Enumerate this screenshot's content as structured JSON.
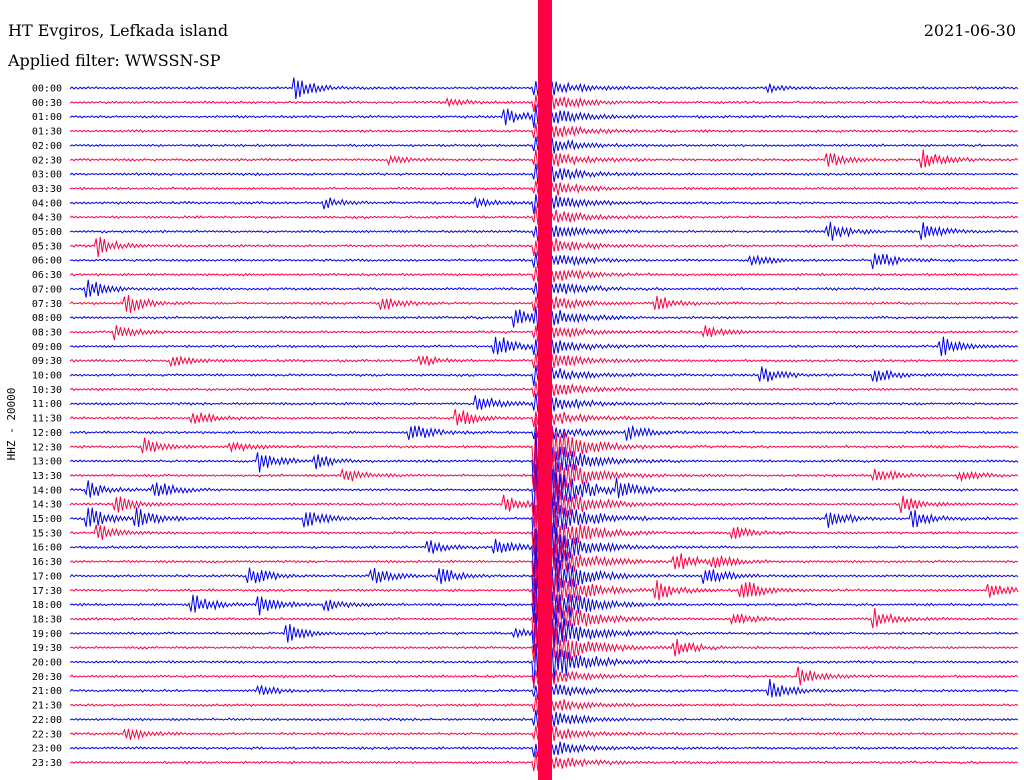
{
  "header": {
    "station": "HT Evgiros, Lefkada island",
    "date": "2021-06-30",
    "filter": "Applied filter: WWSSN-SP"
  },
  "colors": {
    "even": "#0000ee",
    "odd": "#ff0044",
    "text": "#000000"
  },
  "chart_data": {
    "type": "line",
    "title": "HT Evgiros, Lefkada island",
    "ylabel": "HHZ - 20000",
    "row_labels": [
      "00:00",
      "00:30",
      "01:00",
      "01:30",
      "02:00",
      "02:30",
      "03:00",
      "03:30",
      "04:00",
      "04:30",
      "05:00",
      "05:30",
      "06:00",
      "06:30",
      "07:00",
      "07:30",
      "08:00",
      "08:30",
      "09:00",
      "09:30",
      "10:00",
      "10:30",
      "11:00",
      "11:30",
      "12:00",
      "12:30",
      "13:00",
      "13:30",
      "14:00",
      "14:30",
      "15:00",
      "15:30",
      "16:00",
      "16:30",
      "17:00",
      "17:30",
      "18:00",
      "18:30",
      "19:00",
      "19:30",
      "20:00",
      "20:30",
      "21:00",
      "21:30",
      "22:00",
      "22:30",
      "23:00",
      "23:30"
    ],
    "row_color_pattern": [
      "even",
      "odd"
    ],
    "trace_samples": 470,
    "big_event": {
      "time_fraction": 0.5,
      "affected_rows_from": 0,
      "affected_rows_to": 47,
      "peak_rows_from": 25,
      "peak_rows_to": 40
    },
    "events": [
      {
        "row": 0,
        "x": 0.24,
        "amp": 1.1
      },
      {
        "row": 0,
        "x": 0.74,
        "amp": 0.4
      },
      {
        "row": 1,
        "x": 0.4,
        "amp": 0.5
      },
      {
        "row": 2,
        "x": 0.46,
        "amp": 1.0
      },
      {
        "row": 5,
        "x": 0.34,
        "amp": 0.4
      },
      {
        "row": 5,
        "x": 0.8,
        "amp": 0.9
      },
      {
        "row": 5,
        "x": 0.9,
        "amp": 1.2
      },
      {
        "row": 8,
        "x": 0.27,
        "amp": 0.6
      },
      {
        "row": 8,
        "x": 0.43,
        "amp": 0.5
      },
      {
        "row": 10,
        "x": 0.8,
        "amp": 1.2
      },
      {
        "row": 10,
        "x": 0.9,
        "amp": 1.0
      },
      {
        "row": 11,
        "x": 0.03,
        "amp": 1.2
      },
      {
        "row": 12,
        "x": 0.85,
        "amp": 1.1
      },
      {
        "row": 12,
        "x": 0.72,
        "amp": 0.6
      },
      {
        "row": 14,
        "x": 0.02,
        "amp": 1.3
      },
      {
        "row": 15,
        "x": 0.06,
        "amp": 1.2
      },
      {
        "row": 15,
        "x": 0.33,
        "amp": 0.8
      },
      {
        "row": 15,
        "x": 0.62,
        "amp": 0.8
      },
      {
        "row": 16,
        "x": 0.47,
        "amp": 1.2
      },
      {
        "row": 17,
        "x": 0.05,
        "amp": 0.9
      },
      {
        "row": 17,
        "x": 0.67,
        "amp": 0.7
      },
      {
        "row": 18,
        "x": 0.45,
        "amp": 1.3
      },
      {
        "row": 18,
        "x": 0.92,
        "amp": 1.2
      },
      {
        "row": 19,
        "x": 0.11,
        "amp": 0.6
      },
      {
        "row": 19,
        "x": 0.37,
        "amp": 0.6
      },
      {
        "row": 20,
        "x": 0.85,
        "amp": 0.9
      },
      {
        "row": 20,
        "x": 0.73,
        "amp": 1.0
      },
      {
        "row": 22,
        "x": 0.43,
        "amp": 1.2
      },
      {
        "row": 23,
        "x": 0.13,
        "amp": 0.9
      },
      {
        "row": 23,
        "x": 0.41,
        "amp": 1.0
      },
      {
        "row": 24,
        "x": 0.36,
        "amp": 1.1
      },
      {
        "row": 24,
        "x": 0.59,
        "amp": 0.8
      },
      {
        "row": 25,
        "x": 0.08,
        "amp": 1.0
      },
      {
        "row": 25,
        "x": 0.17,
        "amp": 0.7
      },
      {
        "row": 26,
        "x": 0.2,
        "amp": 1.3
      },
      {
        "row": 26,
        "x": 0.26,
        "amp": 0.8
      },
      {
        "row": 27,
        "x": 0.29,
        "amp": 0.8
      },
      {
        "row": 27,
        "x": 0.85,
        "amp": 1.0
      },
      {
        "row": 27,
        "x": 0.94,
        "amp": 0.6
      },
      {
        "row": 28,
        "x": 0.02,
        "amp": 1.0
      },
      {
        "row": 28,
        "x": 0.09,
        "amp": 1.2
      },
      {
        "row": 28,
        "x": 0.58,
        "amp": 1.0
      },
      {
        "row": 29,
        "x": 0.05,
        "amp": 1.0
      },
      {
        "row": 29,
        "x": 0.46,
        "amp": 1.0
      },
      {
        "row": 29,
        "x": 0.88,
        "amp": 0.9
      },
      {
        "row": 30,
        "x": 0.02,
        "amp": 1.4
      },
      {
        "row": 30,
        "x": 0.07,
        "amp": 1.3
      },
      {
        "row": 30,
        "x": 0.25,
        "amp": 1.0
      },
      {
        "row": 30,
        "x": 0.8,
        "amp": 1.1
      },
      {
        "row": 30,
        "x": 0.89,
        "amp": 1.0
      },
      {
        "row": 31,
        "x": 0.03,
        "amp": 1.0
      },
      {
        "row": 31,
        "x": 0.7,
        "amp": 0.7
      },
      {
        "row": 32,
        "x": 0.38,
        "amp": 0.8
      },
      {
        "row": 32,
        "x": 0.45,
        "amp": 1.0
      },
      {
        "row": 33,
        "x": 0.64,
        "amp": 1.0
      },
      {
        "row": 33,
        "x": 0.68,
        "amp": 0.8
      },
      {
        "row": 34,
        "x": 0.19,
        "amp": 1.2
      },
      {
        "row": 34,
        "x": 0.32,
        "amp": 1.1
      },
      {
        "row": 34,
        "x": 0.39,
        "amp": 1.0
      },
      {
        "row": 34,
        "x": 0.67,
        "amp": 1.1
      },
      {
        "row": 35,
        "x": 0.62,
        "amp": 1.2
      },
      {
        "row": 35,
        "x": 0.71,
        "amp": 1.3
      },
      {
        "row": 35,
        "x": 0.97,
        "amp": 0.9
      },
      {
        "row": 36,
        "x": 0.13,
        "amp": 1.3
      },
      {
        "row": 36,
        "x": 0.2,
        "amp": 1.3
      },
      {
        "row": 36,
        "x": 0.27,
        "amp": 0.8
      },
      {
        "row": 37,
        "x": 0.7,
        "amp": 0.8
      },
      {
        "row": 37,
        "x": 0.85,
        "amp": 1.1
      },
      {
        "row": 38,
        "x": 0.23,
        "amp": 1.2
      },
      {
        "row": 38,
        "x": 0.47,
        "amp": 0.5
      },
      {
        "row": 39,
        "x": 0.64,
        "amp": 0.9
      },
      {
        "row": 41,
        "x": 0.77,
        "amp": 1.0
      },
      {
        "row": 42,
        "x": 0.2,
        "amp": 0.6
      },
      {
        "row": 42,
        "x": 0.74,
        "amp": 1.2
      },
      {
        "row": 45,
        "x": 0.06,
        "amp": 0.8
      }
    ]
  }
}
